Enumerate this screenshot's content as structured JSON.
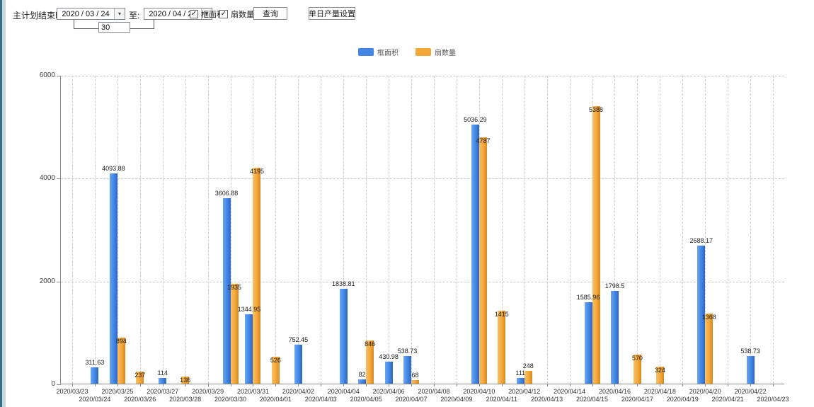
{
  "toolbar": {
    "label": "主计划结束时间:",
    "date_from": "2020 / 03 / 24",
    "to_label": "至:",
    "date_to": "2020 / 04 / 23",
    "interval_value": "30",
    "checkbox_area_label": "框面积",
    "checkbox_fan_label": "扇数量",
    "checkbox_area_checked": "✓",
    "checkbox_fan_checked": "✓",
    "query_button": "查询",
    "daily_output_button": "单日产量设置",
    "dropdown_icon": "▾"
  },
  "legend": {
    "items": [
      {
        "label": "框面积",
        "color": "#4285e4"
      },
      {
        "label": "扇数量",
        "color": "#f3a83a"
      }
    ]
  },
  "chart_data": {
    "type": "bar",
    "title": "",
    "xlabel": "",
    "ylabel": "",
    "ylim": [
      0,
      6000
    ],
    "yticks": [
      0,
      2000,
      4000,
      6000
    ],
    "grid": "dashed",
    "legend_position": "top",
    "categories": [
      "2020/03/23",
      "2020/03/24",
      "2020/03/25",
      "2020/03/26",
      "2020/03/27",
      "2020/03/28",
      "2020/03/29",
      "2020/03/30",
      "2020/03/31",
      "2020/04/01",
      "2020/04/02",
      "2020/04/03",
      "2020/04/04",
      "2020/04/05",
      "2020/04/06",
      "2020/04/07",
      "2020/04/08",
      "2020/04/09",
      "2020/04/10",
      "2020/04/11",
      "2020/04/12",
      "2020/04/13",
      "2020/04/14",
      "2020/04/15",
      "2020/04/16",
      "2020/04/17",
      "2020/04/18",
      "2020/04/19",
      "2020/04/20",
      "2020/04/21",
      "2020/04/22",
      "2020/04/23"
    ],
    "series": [
      {
        "name": "框面积",
        "color": "#4285e4",
        "values": [
          null,
          311.63,
          4093.88,
          null,
          114,
          null,
          null,
          3606.88,
          1344.95,
          null,
          752.45,
          null,
          1838.81,
          82,
          430.98,
          538.73,
          null,
          null,
          5036.29,
          null,
          111,
          null,
          null,
          1585.96,
          1798.5,
          null,
          null,
          null,
          2688.17,
          null,
          538.73,
          null
        ],
        "label_inside": [
          null,
          false,
          false,
          null,
          false,
          null,
          null,
          false,
          false,
          null,
          false,
          null,
          false,
          false,
          false,
          false,
          null,
          null,
          false,
          null,
          false,
          null,
          null,
          false,
          false,
          null,
          null,
          null,
          false,
          null,
          false,
          null
        ]
      },
      {
        "name": "扇数量",
        "color": "#f3a83a",
        "values": [
          null,
          null,
          894,
          237,
          null,
          136,
          null,
          1935,
          4195,
          526,
          null,
          null,
          null,
          846,
          null,
          68,
          null,
          null,
          4787,
          1415,
          248,
          null,
          null,
          5388,
          null,
          570,
          324,
          null,
          1368,
          null,
          null,
          null
        ],
        "label_inside": [
          null,
          null,
          true,
          true,
          null,
          true,
          null,
          true,
          true,
          true,
          null,
          null,
          null,
          true,
          null,
          false,
          null,
          null,
          true,
          true,
          false,
          null,
          null,
          true,
          null,
          true,
          true,
          null,
          true,
          null,
          null,
          null
        ]
      }
    ]
  }
}
